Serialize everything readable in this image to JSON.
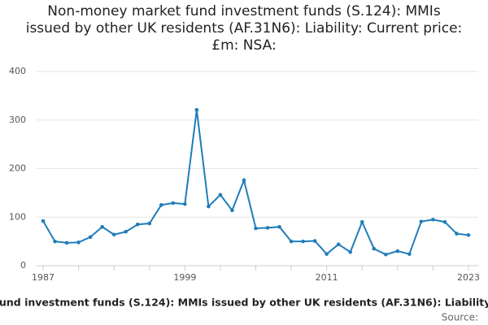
{
  "chart_data": {
    "type": "line",
    "title": "Non-money market fund investment funds (S.124): MMIs issued by other UK residents (AF.31N6): Liability: Current price: £m: NSA:",
    "x_label": "und investment funds (S.124): MMIs issued by other UK residents (AF.31N6): Liability:",
    "source": "Source:",
    "x": [
      1987,
      1988,
      1989,
      1990,
      1991,
      1992,
      1993,
      1994,
      1995,
      1996,
      1997,
      1998,
      1999,
      2000,
      2001,
      2002,
      2003,
      2004,
      2005,
      2006,
      2007,
      2008,
      2009,
      2010,
      2011,
      2012,
      2013,
      2014,
      2015,
      2016,
      2017,
      2018,
      2019,
      2020,
      2021,
      2022,
      2023
    ],
    "series": [
      {
        "name": "Liability",
        "color": "#1f7db9",
        "values": [
          92,
          50,
          47,
          48,
          59,
          80,
          64,
          70,
          85,
          87,
          125,
          129,
          127,
          321,
          122,
          146,
          114,
          176,
          77,
          78,
          80,
          50,
          50,
          51,
          24,
          44,
          28,
          90,
          35,
          23,
          30,
          24,
          91,
          95,
          90,
          66,
          63
        ]
      }
    ],
    "xlim": [
      1987,
      2023
    ],
    "xticks": [
      1987,
      1999,
      2011,
      2023
    ],
    "xminorticks": [
      1990,
      1993,
      1996,
      2002,
      2005,
      2008,
      2014,
      2017,
      2020
    ],
    "ylim": [
      0,
      400
    ],
    "yticks": [
      0,
      100,
      200,
      300,
      400
    ],
    "grid": true
  }
}
